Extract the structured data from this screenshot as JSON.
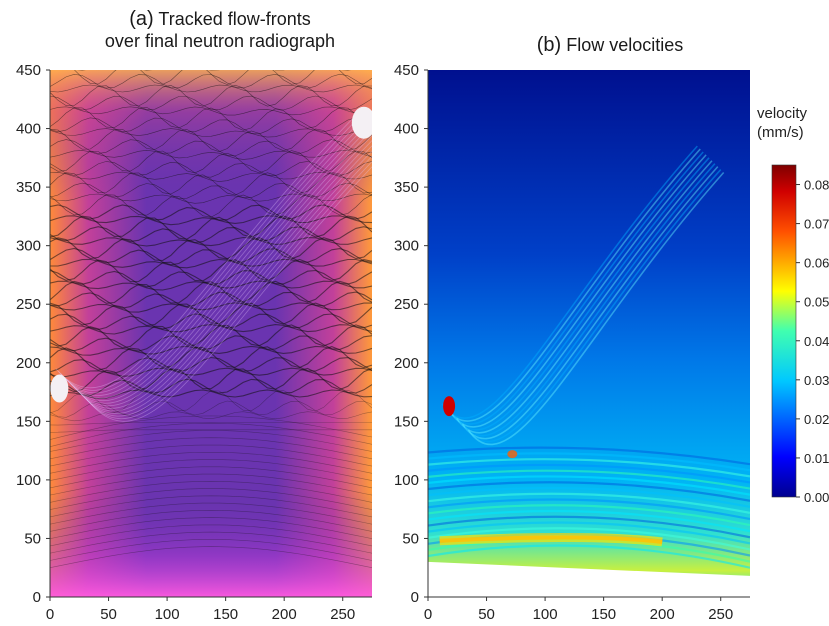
{
  "chart_data": [
    {
      "type": "heatmap",
      "panel": "(a)",
      "title": "Tracked flow-fronts",
      "subtitle": "over final neutron radiograph",
      "xlim": [
        0,
        275
      ],
      "ylim": [
        0,
        450
      ],
      "xticks": [
        0,
        50,
        100,
        150,
        200,
        250
      ],
      "yticks": [
        0,
        50,
        100,
        150,
        200,
        250,
        300,
        350,
        400,
        450
      ],
      "colors": {
        "interior": "#5a2fa8",
        "edge": "#ff7a3c",
        "bottom": "#ff4fd8",
        "lines": "#111111"
      }
    },
    {
      "type": "heatmap",
      "panel": "(b)",
      "title": "Flow velocities",
      "xlim": [
        0,
        275
      ],
      "ylim": [
        0,
        450
      ],
      "xticks": [
        0,
        50,
        100,
        150,
        200,
        250
      ],
      "yticks": [
        0,
        50,
        100,
        150,
        200,
        250,
        300,
        350,
        400,
        450
      ],
      "colorbar": {
        "label_line1": "velocity",
        "label_line2": "(mm/s)",
        "min": 0.0,
        "max": 0.085,
        "ticks": [
          "0.00",
          "0.01",
          "0.02",
          "0.03",
          "0.04",
          "0.05",
          "0.06",
          "0.07",
          "0.08"
        ]
      },
      "colors": {
        "low": "#00008f",
        "mid": "#00c8ff",
        "high": "#7f0000"
      }
    }
  ]
}
